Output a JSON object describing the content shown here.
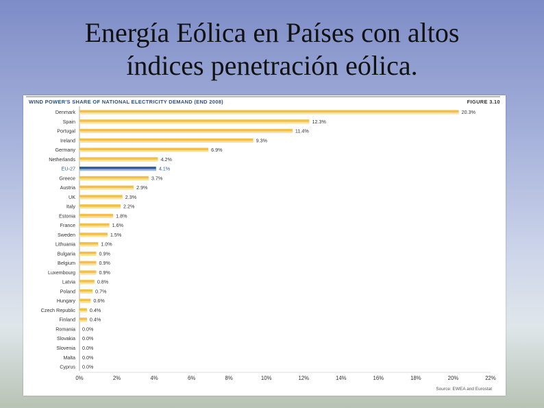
{
  "slide": {
    "title_line1": "Energía Eólica en Países con altos",
    "title_line2": "índices penetración eólica."
  },
  "chart_header": {
    "title": "WIND POWER'S SHARE OF NATIONAL ELECTRICITY DEMAND (END 2008)",
    "figure": "FIGURE 3.10",
    "source": "Source: EWEA and Eurostat"
  },
  "chart_data": {
    "type": "bar",
    "orientation": "horizontal",
    "title": "WIND POWER'S SHARE OF NATIONAL ELECTRICITY DEMAND (END 2008)",
    "categories": [
      "Denmark",
      "Spain",
      "Portugal",
      "Ireland",
      "Germany",
      "Netherlands",
      "EU-27",
      "Greece",
      "Austria",
      "UK",
      "Italy",
      "Estonia",
      "France",
      "Sweden",
      "Lithuania",
      "Bulgaria",
      "Belgium",
      "Luxembourg",
      "Latvia",
      "Poland",
      "Hungary",
      "Czech Republic",
      "Finland",
      "Romania",
      "Slovakia",
      "Slovenia",
      "Malta",
      "Cyprus"
    ],
    "values": [
      20.3,
      12.3,
      11.4,
      9.3,
      6.9,
      4.2,
      4.1,
      3.7,
      2.9,
      2.3,
      2.2,
      1.8,
      1.6,
      1.5,
      1.0,
      0.9,
      0.9,
      0.9,
      0.8,
      0.7,
      0.6,
      0.4,
      0.4,
      0.0,
      0.0,
      0.0,
      0.0,
      0.0
    ],
    "value_labels": [
      "20.3%",
      "12.3%",
      "11.4%",
      "9.3%",
      "6.9%",
      "4.2%",
      "4.1%",
      "3.7%",
      "2.9%",
      "2.3%",
      "2.2%",
      "1.8%",
      "1.6%",
      "1.5%",
      "1.0%",
      "0.9%",
      "0.9%",
      "0.9%",
      "0.8%",
      "0.7%",
      "0.6%",
      "0.4%",
      "0.4%",
      "0.0%",
      "0.0%",
      "0.0%",
      "0.0%",
      "0.0%"
    ],
    "highlight_category": "EU-27",
    "xlim": [
      0,
      22
    ],
    "xticks": [
      "0%",
      "2%",
      "4%",
      "6%",
      "8%",
      "10%",
      "12%",
      "14%",
      "16%",
      "18%",
      "20%",
      "22%"
    ],
    "grid": false,
    "colors": {
      "bar": "#f2c04a",
      "bar_light": "#f9e29a",
      "highlight": "#2f5f9a",
      "highlight_light": "#9fbbe0",
      "label": "#333333",
      "highlight_label": "#2f5f9a",
      "axis": "#999999"
    }
  }
}
